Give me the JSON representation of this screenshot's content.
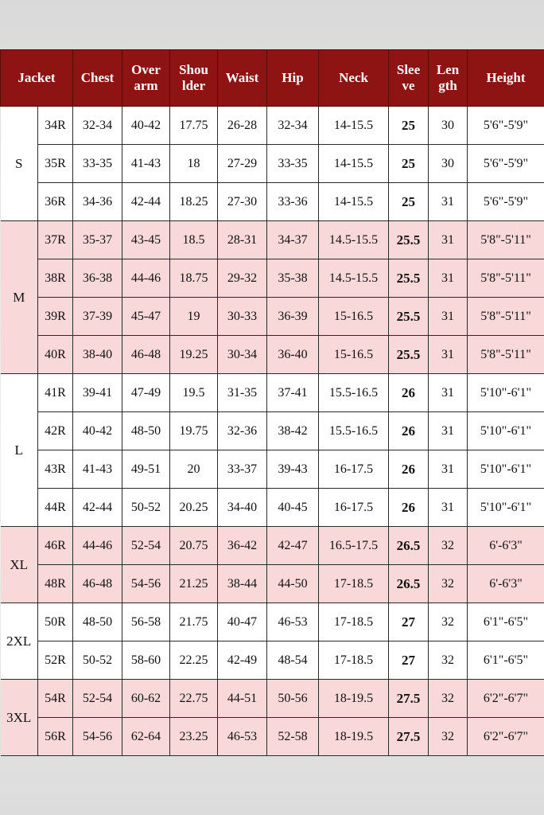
{
  "colors": {
    "header": "#8e1414",
    "highlight": "#f8d8d8"
  },
  "headers": [
    "Jacket",
    "Chest",
    "Over arm",
    "Shou lder",
    "Waist",
    "Hip",
    "Neck",
    "Slee ve",
    "Len gth",
    "Height"
  ],
  "groups": [
    {
      "size": "S",
      "highlight": false,
      "rows": [
        [
          "34R",
          "32-34",
          "40-42",
          "17.75",
          "26-28",
          "32-34",
          "14-15.5",
          "25",
          "30",
          "5'6\"-5'9\""
        ],
        [
          "35R",
          "33-35",
          "41-43",
          "18",
          "27-29",
          "33-35",
          "14-15.5",
          "25",
          "30",
          "5'6\"-5'9\""
        ],
        [
          "36R",
          "34-36",
          "42-44",
          "18.25",
          "27-30",
          "33-36",
          "14-15.5",
          "25",
          "31",
          "5'6\"-5'9\""
        ]
      ]
    },
    {
      "size": "M",
      "highlight": true,
      "rows": [
        [
          "37R",
          "35-37",
          "43-45",
          "18.5",
          "28-31",
          "34-37",
          "14.5-15.5",
          "25.5",
          "31",
          "5'8\"-5'11\""
        ],
        [
          "38R",
          "36-38",
          "44-46",
          "18.75",
          "29-32",
          "35-38",
          "14.5-15.5",
          "25.5",
          "31",
          "5'8\"-5'11\""
        ],
        [
          "39R",
          "37-39",
          "45-47",
          "19",
          "30-33",
          "36-39",
          "15-16.5",
          "25.5",
          "31",
          "5'8\"-5'11\""
        ],
        [
          "40R",
          "38-40",
          "46-48",
          "19.25",
          "30-34",
          "36-40",
          "15-16.5",
          "25.5",
          "31",
          "5'8\"-5'11\""
        ]
      ]
    },
    {
      "size": "L",
      "highlight": false,
      "rows": [
        [
          "41R",
          "39-41",
          "47-49",
          "19.5",
          "31-35",
          "37-41",
          "15.5-16.5",
          "26",
          "31",
          "5'10\"-6'1\""
        ],
        [
          "42R",
          "40-42",
          "48-50",
          "19.75",
          "32-36",
          "38-42",
          "15.5-16.5",
          "26",
          "31",
          "5'10\"-6'1\""
        ],
        [
          "43R",
          "41-43",
          "49-51",
          "20",
          "33-37",
          "39-43",
          "16-17.5",
          "26",
          "31",
          "5'10\"-6'1\""
        ],
        [
          "44R",
          "42-44",
          "50-52",
          "20.25",
          "34-40",
          "40-45",
          "16-17.5",
          "26",
          "31",
          "5'10\"-6'1\""
        ]
      ]
    },
    {
      "size": "XL",
      "highlight": true,
      "rows": [
        [
          "46R",
          "44-46",
          "52-54",
          "20.75",
          "36-42",
          "42-47",
          "16.5-17.5",
          "26.5",
          "32",
          "6'-6'3\""
        ],
        [
          "48R",
          "46-48",
          "54-56",
          "21.25",
          "38-44",
          "44-50",
          "17-18.5",
          "26.5",
          "32",
          "6'-6'3\""
        ]
      ]
    },
    {
      "size": "2XL",
      "highlight": false,
      "rows": [
        [
          "50R",
          "48-50",
          "56-58",
          "21.75",
          "40-47",
          "46-53",
          "17-18.5",
          "27",
          "32",
          "6'1\"-6'5\""
        ],
        [
          "52R",
          "50-52",
          "58-60",
          "22.25",
          "42-49",
          "48-54",
          "17-18.5",
          "27",
          "32",
          "6'1\"-6'5\""
        ]
      ]
    },
    {
      "size": "3XL",
      "highlight": true,
      "rows": [
        [
          "54R",
          "52-54",
          "60-62",
          "22.75",
          "44-51",
          "50-56",
          "18-19.5",
          "27.5",
          "32",
          "6'2\"-6'7\""
        ],
        [
          "56R",
          "54-56",
          "62-64",
          "23.25",
          "46-53",
          "52-58",
          "18-19.5",
          "27.5",
          "32",
          "6'2\"-6'7\""
        ]
      ]
    }
  ]
}
